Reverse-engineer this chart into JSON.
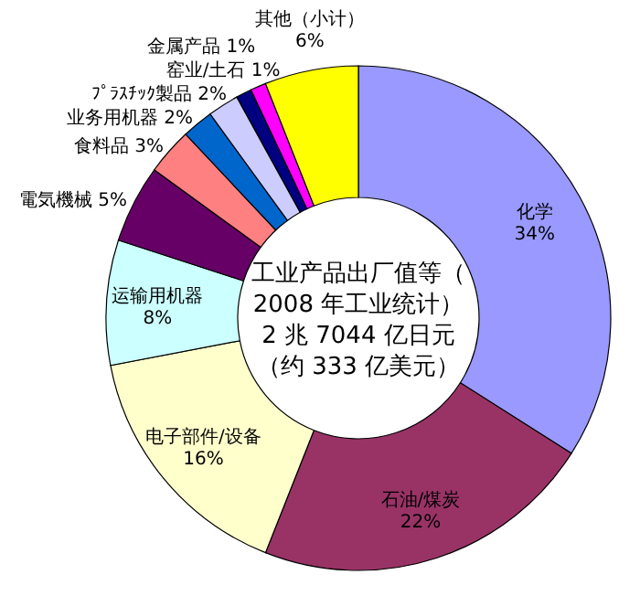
{
  "chart_data": {
    "type": "donut",
    "title": "工业产品出厂值等（2008 年工业统计）2 兆 7044 亿日元（约 333 亿美元）",
    "categories": [
      "化学",
      "石油/煤炭",
      "电子部件/设备",
      "运输用机器",
      "電気機械",
      "食料品",
      "业务用机器",
      "ﾌﾟﾗｽﾁｯｸ製品",
      "窑业/土石",
      "金属产品",
      "其他（小计）"
    ],
    "values": [
      34,
      22,
      16,
      8,
      5,
      3,
      2,
      2,
      1,
      1,
      6
    ],
    "colors": [
      "#9999ff",
      "#993366",
      "#ffffcc",
      "#ccffff",
      "#660066",
      "#ff8080",
      "#0066cc",
      "#ccccff",
      "#000080",
      "#ff00ff",
      "#ffff00"
    ],
    "value_labels": [
      "34%",
      "22%",
      "16%",
      "8%",
      "5%",
      "3%",
      "2%",
      "2%",
      "1%",
      "1%",
      "6%"
    ]
  }
}
